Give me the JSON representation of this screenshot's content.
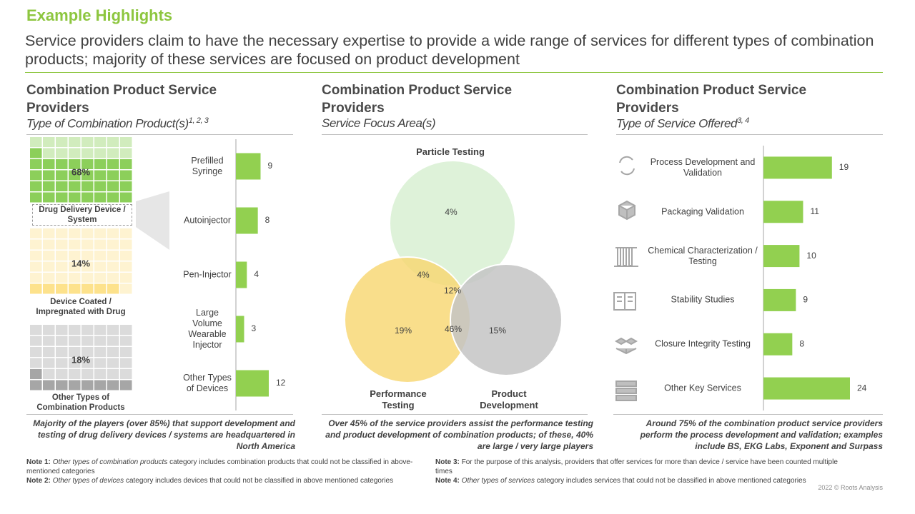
{
  "header": {
    "title": "Example Highlights",
    "subtitle": "Service providers claim to have the necessary expertise to provide a wide range of services for different types of combination products; majority of these services are focused on product development"
  },
  "panels": [
    {
      "title": "Combination Product Service Providers",
      "subtitle": "Type of Combination Product(s)",
      "refs": "1, 2, 3",
      "takeaway": "Majority of the players (over 85%) that support development and testing of drug delivery devices / systems are headquartered in North America"
    },
    {
      "title": "Combination Product Service Providers",
      "subtitle": "Service Focus Area(s)",
      "takeaway": "Over 45% of the service providers assist  the performance testing and product development of combination products; of these, 40% are large / very large players"
    },
    {
      "title": "Combination Product Service Providers",
      "subtitle": "Type of Service Offered",
      "refs": "3, 4",
      "takeaway": "Around 75% of the combination product service providers perform the process development and validation; examples include BS, EKG Labs, Exponent and Surpass"
    }
  ],
  "chart_data": [
    {
      "type": "waffle",
      "categories": [
        "Drug Delivery Device / System",
        "Device Coated / Impregnated with Drug",
        "Other Types of Combination Products"
      ],
      "values": [
        68,
        14,
        18
      ],
      "value_labels": [
        "68%",
        "14%",
        "18%"
      ],
      "colors": [
        "#8ccf5a",
        "#fde28c",
        "#a6a6a6"
      ]
    },
    {
      "type": "bar",
      "categories": [
        "Prefilled Syringe",
        "Autoinjector",
        "Pen-Injector",
        "Large Volume Wearable Injector",
        "Other Types of Devices"
      ],
      "values": [
        9,
        8,
        4,
        3,
        12
      ],
      "color": "#92d050"
    },
    {
      "type": "venn",
      "sets": [
        "Particle Testing",
        "Performance Testing",
        "Product Development"
      ],
      "colors": [
        "#d6efcf",
        "#f7d66e",
        "#c4c4c4"
      ],
      "values": [
        4,
        4,
        12,
        19,
        46,
        15
      ],
      "value_labels": [
        "4%",
        "4%",
        "12%",
        "19%",
        "46%",
        "15%"
      ]
    },
    {
      "type": "bar",
      "categories": [
        "Process Development and Validation",
        "Packaging Validation",
        "Chemical Characterization / Testing",
        "Stability Studies",
        "Closure Integrity Testing",
        "Other Key Services"
      ],
      "values": [
        19,
        11,
        10,
        9,
        8,
        24
      ],
      "color": "#92d050"
    }
  ],
  "notes": [
    {
      "label": "Note 1:",
      "emphasis": "Other types of combination products",
      "text": "category includes combination products that could not be classified in above-mentioned categories"
    },
    {
      "label": "Note 2:",
      "emphasis": "Other types of devices",
      "text": "category includes devices that could not be classified in above mentioned categories"
    },
    {
      "label": "Note 3:",
      "text": "For the purpose of this analysis, providers that offer services for more than device / service  have been counted multiple times"
    },
    {
      "label": "Note 4:",
      "emphasis": "Other types of services",
      "text": "category includes services that could not be classified in above mentioned categories"
    }
  ],
  "footer": "2022 © Roots Analysis"
}
